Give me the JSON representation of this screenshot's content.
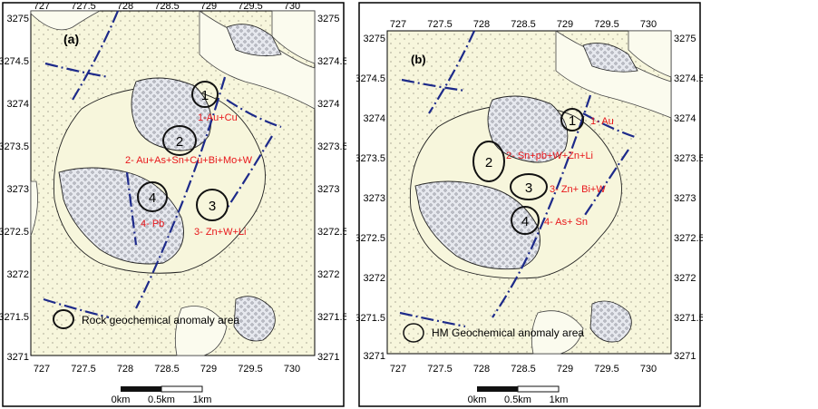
{
  "panels": [
    {
      "id": "a",
      "label": "(a)",
      "x_ticks": [
        "727",
        "727.5",
        "728",
        "728.5",
        "729",
        "729.5",
        "730"
      ],
      "y_ticks": [
        "3275",
        "3274.5",
        "3274",
        "3273.5",
        "3273",
        "3272.5",
        "3272",
        "3271.5",
        "3271"
      ],
      "anomalies": [
        {
          "num": "1",
          "label": "1-Au+Cu"
        },
        {
          "num": "2",
          "label": "2- Au+As+Sn+Cu+Bi+Mo+W"
        },
        {
          "num": "3",
          "label": "3- Zn+W+Li"
        },
        {
          "num": "4",
          "label": "4- Pb"
        }
      ],
      "legend": "Rock geochemical anomaly area",
      "scale": [
        "0km",
        "0.5km",
        "1km"
      ]
    },
    {
      "id": "b",
      "label": "(b)",
      "x_ticks": [
        "727",
        "727.5",
        "728",
        "728.5",
        "729",
        "729.5",
        "730"
      ],
      "y_ticks": [
        "3275",
        "3274.5",
        "3274",
        "3273.5",
        "3273",
        "3272.5",
        "3272",
        "3271.5",
        "3271"
      ],
      "anomalies": [
        {
          "num": "1",
          "label": "1- Au"
        },
        {
          "num": "2",
          "label": "2- Sn+pb+W+Zn+Li"
        },
        {
          "num": "3",
          "label": "3- Zn+ Bi+W"
        },
        {
          "num": "4",
          "label": "4- As+ Sn"
        }
      ],
      "legend": "HM Geochemical anomaly area",
      "scale": [
        "0km",
        "0.5km",
        "1km"
      ]
    }
  ],
  "colors": {
    "land": "#f7f6dc",
    "dots": "#b9b6a2",
    "intrusion": "#e4e6ec",
    "fault": "#1d2a8a",
    "label": "#e8161a"
  }
}
